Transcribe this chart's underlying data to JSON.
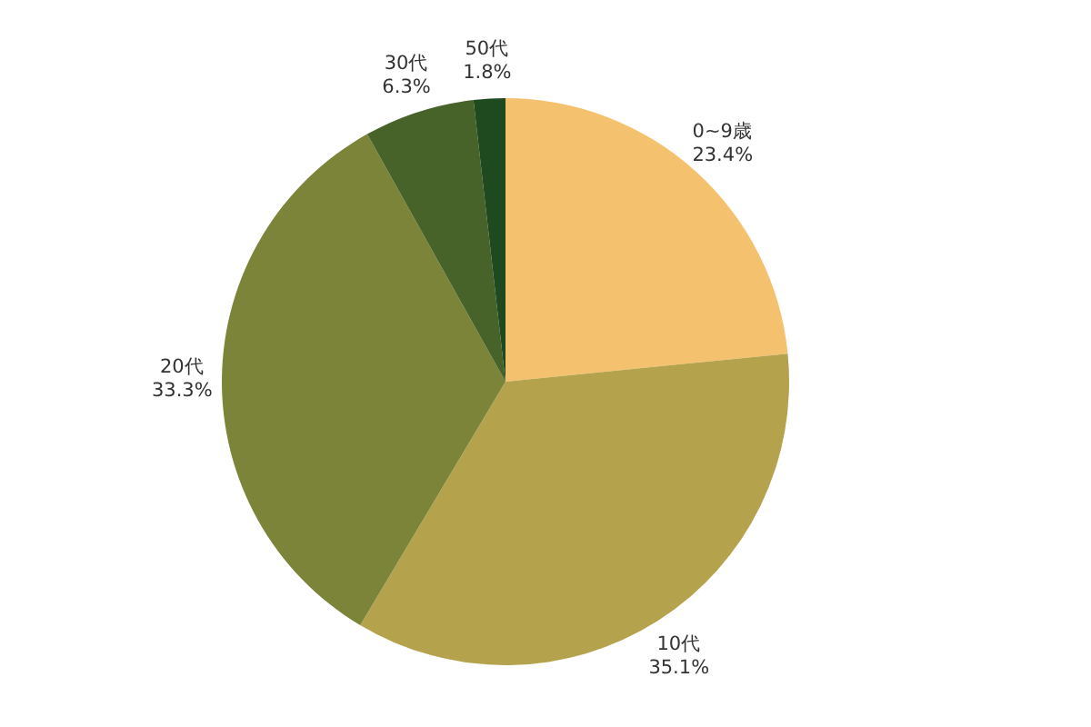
{
  "chart_data": {
    "type": "pie",
    "categories": [
      "0~9歳",
      "10代",
      "20代",
      "30代",
      "50代"
    ],
    "values": [
      23.4,
      35.1,
      33.3,
      6.3,
      1.8
    ],
    "colors": [
      "#f4c26f",
      "#b5a24d",
      "#7b8439",
      "#48632a",
      "#1f4a1f"
    ],
    "value_labels": [
      "23.4%",
      "35.1%",
      "33.3%",
      "6.3%",
      "1.8%"
    ]
  }
}
